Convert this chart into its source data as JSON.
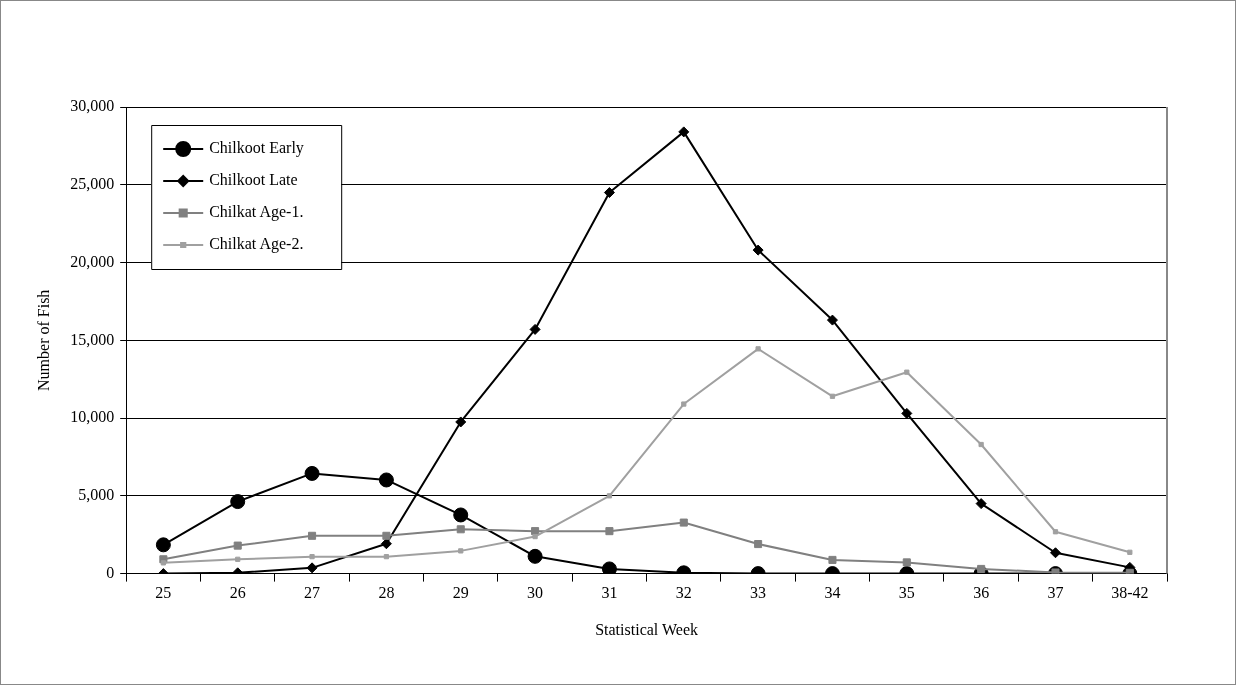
{
  "chart_data": {
    "type": "line",
    "xlabel": "Statistical Week",
    "ylabel": "Number of Fish",
    "categories": [
      "25",
      "26",
      "27",
      "28",
      "29",
      "30",
      "31",
      "32",
      "33",
      "34",
      "35",
      "36",
      "37",
      "38-42"
    ],
    "series": [
      {
        "name": "Chilkoot Early",
        "color": "#000000",
        "marker": "circle",
        "values": [
          1850,
          4630,
          6440,
          6020,
          3770,
          1110,
          300,
          50,
          0,
          0,
          0,
          0,
          0,
          0
        ]
      },
      {
        "name": "Chilkoot Late",
        "color": "#000000",
        "marker": "diamond",
        "values": [
          0,
          50,
          370,
          1920,
          9750,
          15700,
          24500,
          28400,
          20800,
          16300,
          10300,
          4500,
          1340,
          400
        ]
      },
      {
        "name": "Chilkat Age-1.",
        "color": "#808080",
        "marker": "square",
        "values": [
          920,
          1800,
          2430,
          2430,
          2850,
          2730,
          2730,
          3280,
          1900,
          880,
          720,
          300,
          70,
          50
        ]
      },
      {
        "name": "Chilkat Age-2.",
        "color": "#a0a0a0",
        "marker": "square",
        "values": [
          690,
          920,
          1090,
          1090,
          1460,
          2380,
          5000,
          10900,
          14450,
          11400,
          12950,
          8300,
          2690,
          1370
        ]
      }
    ],
    "ylim": [
      0,
      30000
    ],
    "yticks": [
      {
        "value": 0,
        "label": "0"
      },
      {
        "value": 5000,
        "label": "5,000"
      },
      {
        "value": 10000,
        "label": "10,000"
      },
      {
        "value": 15000,
        "label": "15,000"
      },
      {
        "value": 20000,
        "label": "20,000"
      },
      {
        "value": 25000,
        "label": "25,000"
      },
      {
        "value": 30000,
        "label": "30,000"
      }
    ],
    "grid": "y",
    "legend": "top left",
    "line_style": "solid"
  }
}
